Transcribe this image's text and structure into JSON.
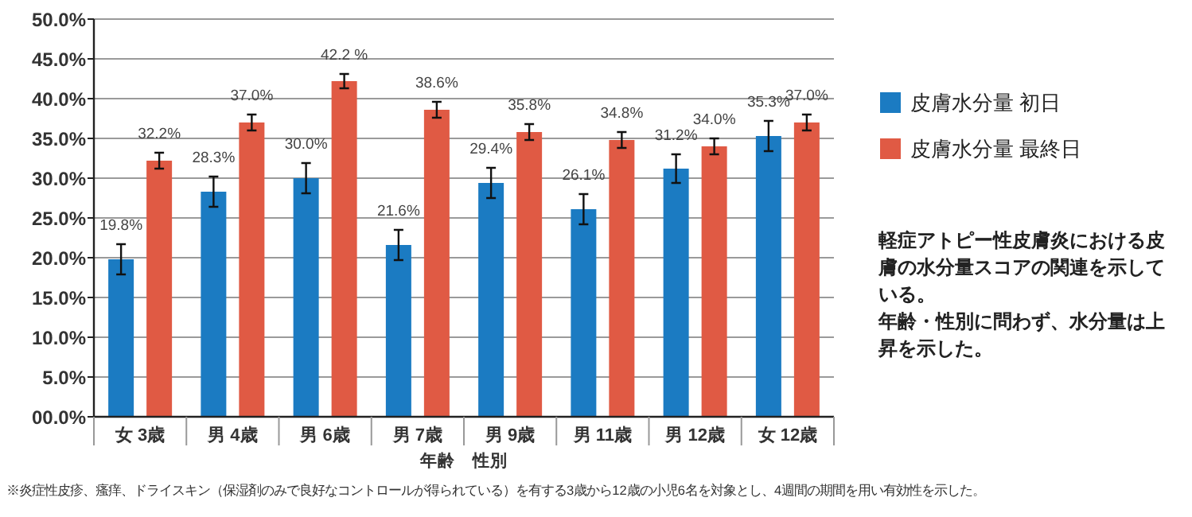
{
  "chart_data": {
    "type": "bar",
    "xlabel": "年齢　性別",
    "categories": [
      "女 3歳",
      "男 4歳",
      "男 6歳",
      "男 7歳",
      "男 9歳",
      "男 11歳",
      "男 12歳",
      "女 12歳"
    ],
    "series": [
      {
        "name": "皮膚水分量 初日",
        "color": "#1b7bc2",
        "values": [
          19.8,
          28.3,
          30.0,
          21.6,
          29.4,
          26.1,
          31.2,
          35.3
        ],
        "errors": [
          1.9,
          1.9,
          1.9,
          1.9,
          1.9,
          1.9,
          1.8,
          1.9
        ],
        "value_labels": [
          "19.8%",
          "28.3%",
          "30.0%",
          "21.6%",
          "29.4%",
          "26.1%",
          "31.2%",
          "35.3%"
        ]
      },
      {
        "name": "皮膚水分量 最終日",
        "color": "#e05a44",
        "values": [
          32.2,
          37.0,
          42.2,
          38.6,
          35.8,
          34.8,
          34.0,
          37.0
        ],
        "errors": [
          1.0,
          1.0,
          0.9,
          1.0,
          1.0,
          1.0,
          1.0,
          1.0
        ],
        "value_labels": [
          "32.2%",
          "37.0%",
          "42.2 %",
          "38.6%",
          "35.8%",
          "34.8%",
          "34.0%",
          "37.0%"
        ]
      }
    ],
    "ylim": [
      0,
      50
    ],
    "yticks": [
      {
        "value": 0,
        "label": "00.0%"
      },
      {
        "value": 5,
        "label": "5.0%"
      },
      {
        "value": 10,
        "label": "10.0%"
      },
      {
        "value": 15,
        "label": "15.0%"
      },
      {
        "value": 20,
        "label": "20.0%"
      },
      {
        "value": 25,
        "label": "25.0%"
      },
      {
        "value": 30,
        "label": "30.0%"
      },
      {
        "value": 35,
        "label": "35.0%"
      },
      {
        "value": 40,
        "label": "40.0%"
      },
      {
        "value": 45,
        "label": "45.0%"
      },
      {
        "value": 50,
        "label": "50.0%"
      }
    ],
    "grid": "y",
    "legend": "right",
    "annotations": [
      "軽症アトピー性皮膚炎における皮膚の水分量スコアの関連を示している。",
      "年齢・性別に問わず、水分量は上昇を示した。",
      "※炎症性皮疹、瘙痒、ドライスキン（保湿剤のみで良好なコントロールが得られている）を有する3歳から12歳の小児6名を対象とし、4週間の期間を用い有効性を示した。"
    ]
  }
}
